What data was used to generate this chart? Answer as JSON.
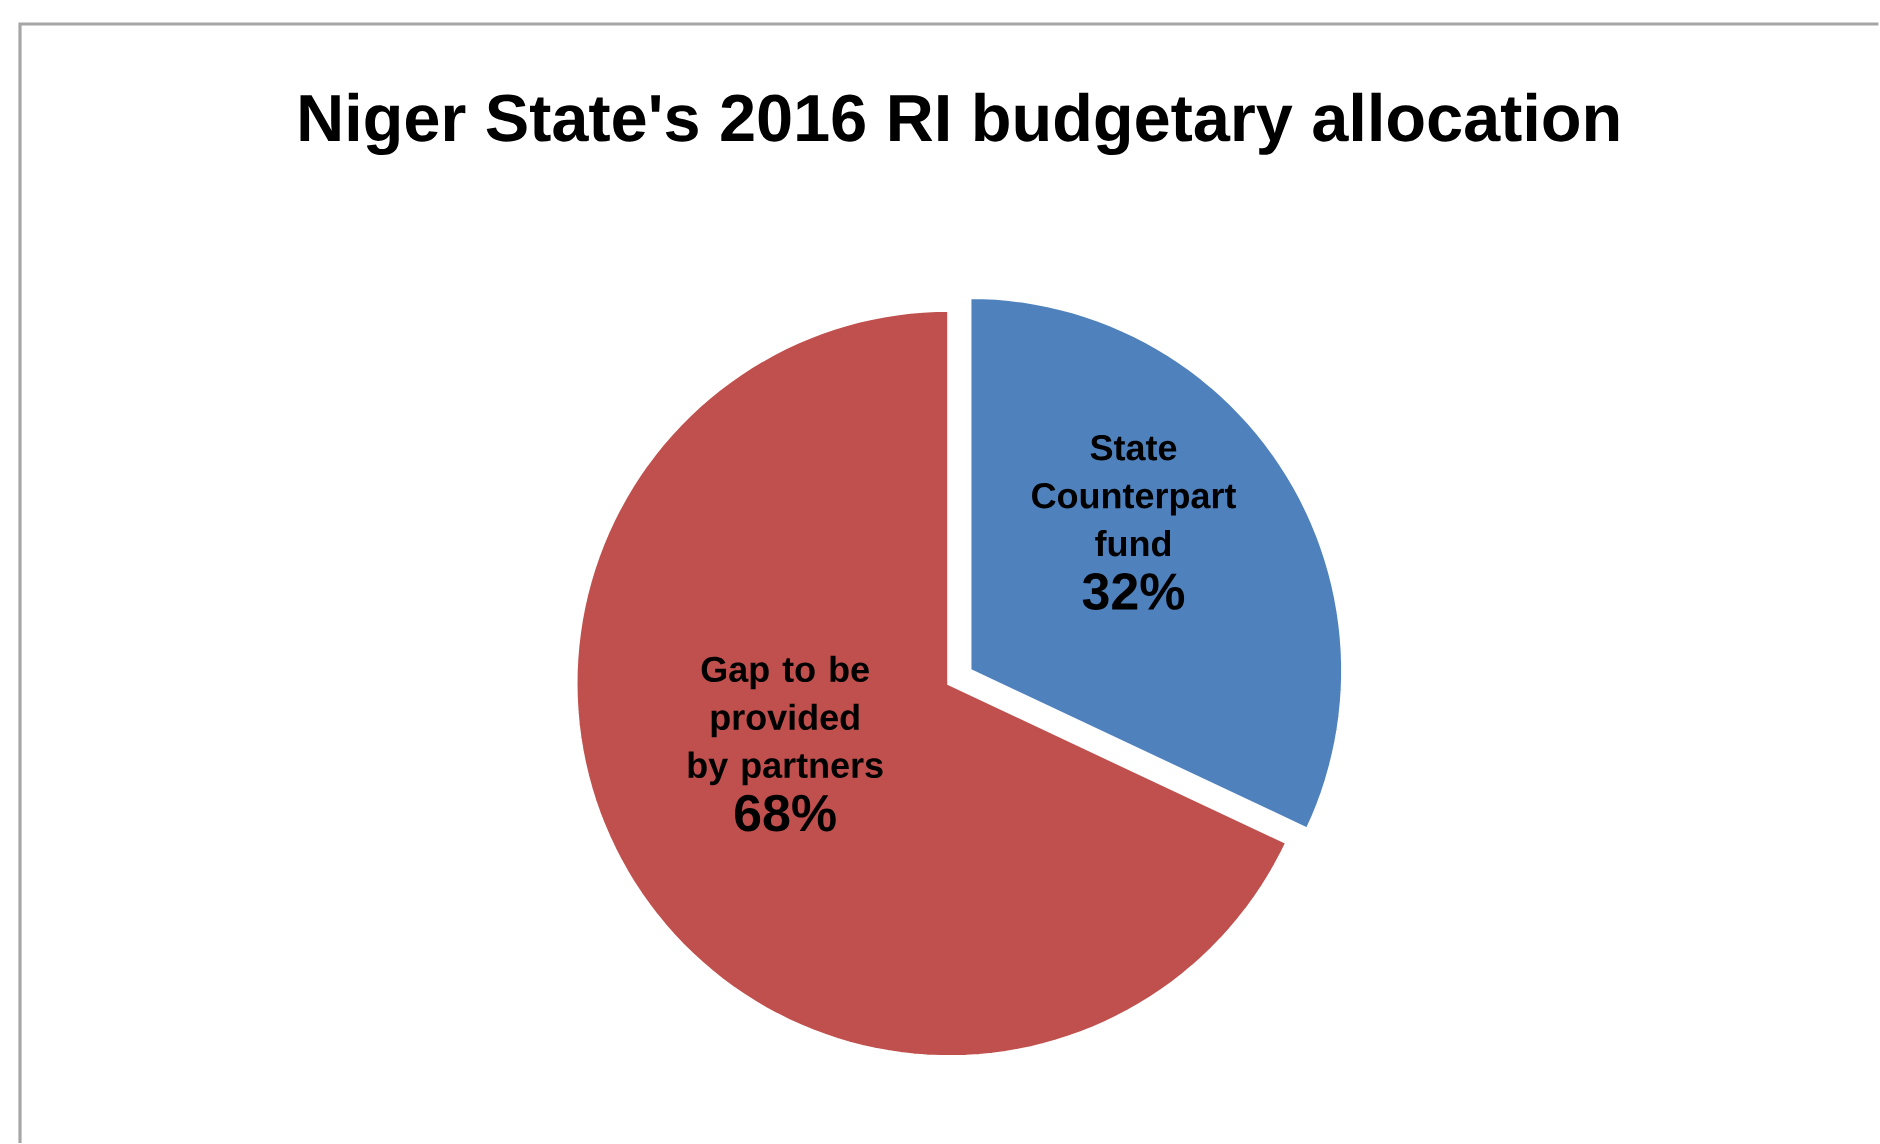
{
  "chart_data": {
    "type": "pie",
    "title": "Niger State's 2016 RI budgetary allocation",
    "categories": [
      "State Counterpart fund",
      "Gap to be provided by partners"
    ],
    "values": [
      32,
      68
    ],
    "colors": [
      "#4f81bd",
      "#c0504d"
    ],
    "value_labels": [
      "32%",
      "68%"
    ]
  }
}
